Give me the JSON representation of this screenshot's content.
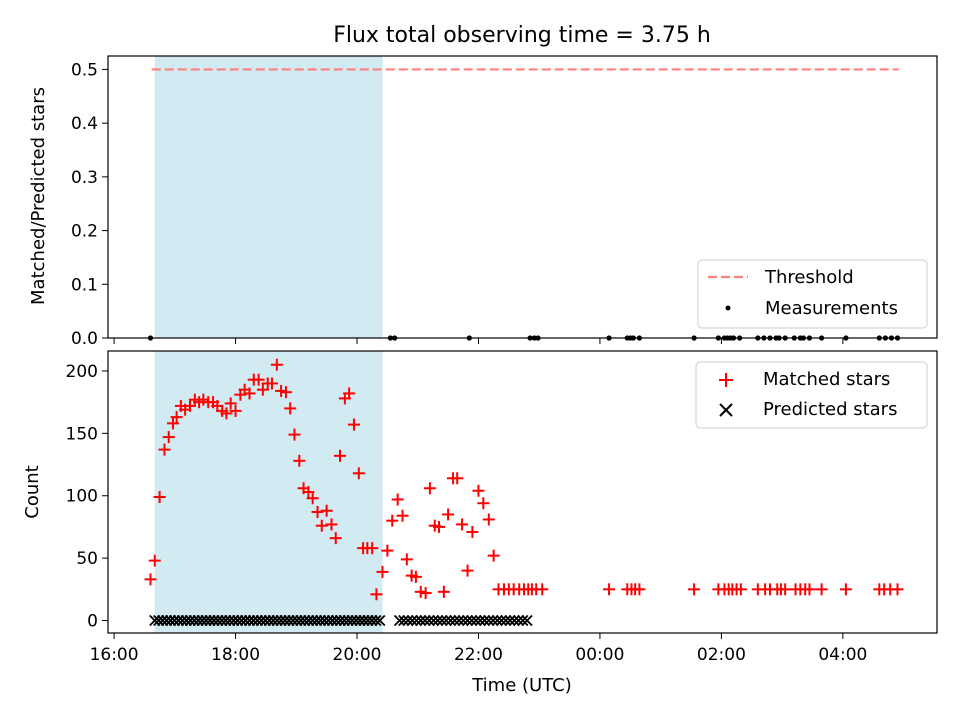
{
  "chart_data": [
    {
      "type": "scatter",
      "title": "Flux total observing time = 3.75 h",
      "xlabel": "",
      "ylabel": "Matched/Predicted stars",
      "xlim": [
        15.9,
        29.55
      ],
      "ylim": [
        0,
        0.525
      ],
      "yticks": [
        0.0,
        0.1,
        0.2,
        0.3,
        0.4,
        0.5
      ],
      "ytick_labels": [
        "0.0",
        "0.1",
        "0.2",
        "0.3",
        "0.4",
        "0.5"
      ],
      "shaded_region": [
        16.67,
        20.42
      ],
      "legend_position": "lower-right",
      "series": [
        {
          "name": "Threshold",
          "style": "dashed-line",
          "color": "#ff7f7f",
          "x": [
            16.62,
            28.92
          ],
          "y": [
            0.5,
            0.5
          ]
        },
        {
          "name": "Measurements",
          "style": "dot",
          "color": "#000000",
          "x": [
            16.6,
            20.55,
            20.62,
            21.85,
            22.85,
            22.92,
            22.98,
            24.15,
            24.45,
            24.5,
            24.55,
            24.65,
            25.55,
            25.95,
            26.05,
            26.1,
            26.15,
            26.2,
            26.3,
            26.6,
            26.7,
            26.8,
            26.9,
            26.95,
            27.05,
            27.2,
            27.3,
            27.35,
            27.45,
            27.65,
            28.05,
            28.6,
            28.7,
            28.8,
            28.9
          ],
          "y": [
            0,
            0,
            0,
            0,
            0,
            0,
            0,
            0,
            0,
            0,
            0,
            0,
            0,
            0,
            0,
            0,
            0,
            0,
            0,
            0,
            0,
            0,
            0,
            0,
            0,
            0,
            0,
            0,
            0,
            0,
            0,
            0,
            0,
            0,
            0
          ]
        }
      ]
    },
    {
      "type": "scatter",
      "title": "",
      "xlabel": "Time (UTC)",
      "ylabel": "Count",
      "xlim": [
        15.9,
        29.55
      ],
      "ylim": [
        -10,
        216
      ],
      "yticks": [
        0,
        50,
        100,
        150,
        200
      ],
      "ytick_labels": [
        "0",
        "50",
        "100",
        "150",
        "200"
      ],
      "xticks": [
        16,
        18,
        20,
        22,
        24,
        26,
        28
      ],
      "xtick_labels": [
        "16:00",
        "18:00",
        "20:00",
        "22:00",
        "00:00",
        "02:00",
        "04:00"
      ],
      "shaded_region": [
        16.67,
        20.42
      ],
      "legend_position": "upper-right",
      "series": [
        {
          "name": "Matched stars",
          "marker": "+",
          "color": "#ff0000",
          "x": [
            16.6,
            16.67,
            16.75,
            16.83,
            16.9,
            16.97,
            17.03,
            17.1,
            17.17,
            17.25,
            17.33,
            17.4,
            17.47,
            17.55,
            17.63,
            17.7,
            17.78,
            17.85,
            17.92,
            18.0,
            18.08,
            18.15,
            18.23,
            18.3,
            18.38,
            18.45,
            18.53,
            18.6,
            18.68,
            18.75,
            18.83,
            18.9,
            18.97,
            19.05,
            19.12,
            19.2,
            19.27,
            19.35,
            19.42,
            19.5,
            19.58,
            19.65,
            19.72,
            19.8,
            19.87,
            19.95,
            20.03,
            20.1,
            20.17,
            20.25,
            20.32,
            20.42,
            20.5,
            20.58,
            20.67,
            20.75,
            20.82,
            20.9,
            20.97,
            21.05,
            21.13,
            21.2,
            21.28,
            21.35,
            21.43,
            21.5,
            21.58,
            21.65,
            21.73,
            21.82,
            21.9,
            22.0,
            22.08,
            22.17,
            22.25,
            22.33,
            22.42,
            22.5,
            22.58,
            22.67,
            22.75,
            22.82,
            22.88,
            22.95,
            23.05,
            24.15,
            24.45,
            24.52,
            24.58,
            24.65,
            25.55,
            25.95,
            26.05,
            26.12,
            26.18,
            26.25,
            26.32,
            26.6,
            26.72,
            26.8,
            26.92,
            26.98,
            27.05,
            27.22,
            27.3,
            27.38,
            27.45,
            27.65,
            28.05,
            28.6,
            28.68,
            28.78,
            28.9
          ],
          "y": [
            33,
            48,
            99,
            137,
            147,
            158,
            163,
            172,
            169,
            172,
            177,
            175,
            177,
            175,
            175,
            172,
            168,
            166,
            174,
            168,
            181,
            185,
            182,
            193,
            193,
            185,
            190,
            190,
            205,
            184,
            183,
            170,
            149,
            128,
            106,
            103,
            98,
            87,
            76,
            88,
            77,
            66,
            132,
            178,
            182,
            157,
            118,
            58,
            58,
            58,
            21,
            39,
            56,
            80,
            97,
            84,
            49,
            36,
            35,
            23,
            22,
            106,
            76,
            75,
            23,
            85,
            114,
            114,
            77,
            40,
            71,
            104,
            94,
            81,
            52,
            25,
            25,
            25,
            25,
            25,
            25,
            25,
            25,
            25,
            25,
            25,
            25,
            25,
            25,
            25,
            25,
            25,
            25,
            25,
            25,
            25,
            25,
            25,
            25,
            25,
            25,
            25,
            25,
            25,
            25,
            25,
            25,
            25,
            25,
            25,
            25,
            25,
            25
          ]
        },
        {
          "name": "Predicted stars",
          "marker": "x",
          "color": "#000000",
          "x_from": 16.67,
          "x_to": 20.42,
          "x_step": 0.065,
          "y": 0,
          "x_extra": [
            20.7,
            20.77,
            20.84,
            20.91,
            20.98,
            21.05,
            21.12,
            21.19,
            21.26,
            21.33,
            21.4,
            21.47,
            21.54,
            21.61,
            21.68,
            21.75,
            21.82,
            21.89,
            21.96,
            22.03,
            22.1,
            22.17,
            22.24,
            22.31,
            22.38,
            22.45,
            22.52,
            22.59,
            22.66,
            22.73,
            22.8
          ]
        }
      ]
    }
  ]
}
